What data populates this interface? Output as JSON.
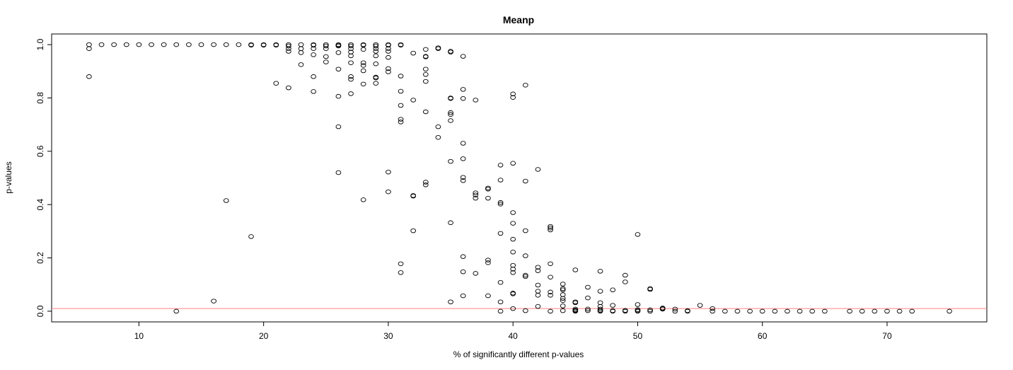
{
  "chart_data": {
    "type": "scatter",
    "title": "Meanp",
    "xlabel": "% of significantly different p-values",
    "ylabel": "p-values",
    "xlim": [
      3,
      78
    ],
    "ylim": [
      -0.04,
      1.04
    ],
    "x_ticks": [
      10,
      20,
      30,
      40,
      50,
      60,
      70
    ],
    "y_ticks": [
      0.0,
      0.2,
      0.4,
      0.6,
      0.8,
      1.0
    ],
    "x_tick_labels": [
      "10",
      "20",
      "30",
      "40",
      "50",
      "60",
      "70"
    ],
    "y_tick_labels": [
      "0.0",
      "0.2",
      "0.4",
      "0.6",
      "0.8",
      "1.0"
    ],
    "grid": false,
    "reference_line": {
      "y": 0.01,
      "color": "#ff8080"
    },
    "point_color": "#000000",
    "points": [
      [
        6,
        1.0
      ],
      [
        6,
        0.985
      ],
      [
        6,
        0.88
      ],
      [
        7,
        1.0
      ],
      [
        8,
        1.0
      ],
      [
        9,
        1.0
      ],
      [
        10,
        1.0
      ],
      [
        11,
        1.0
      ],
      [
        12,
        1.0
      ],
      [
        13,
        1.0
      ],
      [
        13,
        0.0
      ],
      [
        14,
        1.0
      ],
      [
        15,
        1.0
      ],
      [
        16,
        1.0
      ],
      [
        16,
        0.038
      ],
      [
        17,
        1.0
      ],
      [
        17,
        0.415
      ],
      [
        18,
        1.0
      ],
      [
        19,
        1.0
      ],
      [
        19,
        0.998
      ],
      [
        19,
        0.28
      ],
      [
        20,
        1.0
      ],
      [
        20,
        0.998
      ],
      [
        21,
        1.0
      ],
      [
        21,
        0.998
      ],
      [
        21,
        0.855
      ],
      [
        22,
        1.0
      ],
      [
        22,
        0.995
      ],
      [
        22,
        0.985
      ],
      [
        22,
        0.975
      ],
      [
        22,
        0.838
      ],
      [
        23,
        1.0
      ],
      [
        23,
        0.985
      ],
      [
        23,
        0.97
      ],
      [
        23,
        0.925
      ],
      [
        24,
        1.0
      ],
      [
        24,
        0.998
      ],
      [
        24,
        0.985
      ],
      [
        24,
        0.962
      ],
      [
        24,
        0.88
      ],
      [
        24,
        0.824
      ],
      [
        25,
        1.0
      ],
      [
        25,
        0.995
      ],
      [
        25,
        0.985
      ],
      [
        25,
        0.955
      ],
      [
        25,
        0.935
      ],
      [
        26,
        1.0
      ],
      [
        26,
        0.998
      ],
      [
        26,
        0.995
      ],
      [
        26,
        0.97
      ],
      [
        26,
        0.908
      ],
      [
        26,
        0.806
      ],
      [
        26,
        0.692
      ],
      [
        26,
        0.52
      ],
      [
        27,
        1.0
      ],
      [
        27,
        0.995
      ],
      [
        27,
        0.985
      ],
      [
        27,
        0.972
      ],
      [
        27,
        0.958
      ],
      [
        27,
        0.932
      ],
      [
        27,
        0.88
      ],
      [
        27,
        0.87
      ],
      [
        27,
        0.816
      ],
      [
        28,
        1.0
      ],
      [
        28,
        0.998
      ],
      [
        28,
        0.982
      ],
      [
        28,
        0.932
      ],
      [
        28,
        0.922
      ],
      [
        28,
        0.902
      ],
      [
        28,
        0.852
      ],
      [
        28,
        0.418
      ],
      [
        29,
        1.0
      ],
      [
        29,
        0.995
      ],
      [
        29,
        0.985
      ],
      [
        29,
        0.975
      ],
      [
        29,
        0.958
      ],
      [
        29,
        0.928
      ],
      [
        29,
        0.878
      ],
      [
        29,
        0.875
      ],
      [
        29,
        0.855
      ],
      [
        30,
        1.0
      ],
      [
        30,
        0.998
      ],
      [
        30,
        0.985
      ],
      [
        30,
        0.975
      ],
      [
        30,
        0.952
      ],
      [
        30,
        0.91
      ],
      [
        30,
        0.898
      ],
      [
        30,
        0.522
      ],
      [
        30,
        0.448
      ],
      [
        31,
        1.0
      ],
      [
        31,
        0.998
      ],
      [
        31,
        0.882
      ],
      [
        31,
        0.825
      ],
      [
        31,
        0.772
      ],
      [
        31,
        0.72
      ],
      [
        31,
        0.71
      ],
      [
        31,
        0.178
      ],
      [
        31,
        0.145
      ],
      [
        32,
        0.968
      ],
      [
        32,
        0.792
      ],
      [
        32,
        0.434
      ],
      [
        32,
        0.432
      ],
      [
        32,
        0.302
      ],
      [
        33,
        0.982
      ],
      [
        33,
        0.956
      ],
      [
        33,
        0.954
      ],
      [
        33,
        0.908
      ],
      [
        33,
        0.888
      ],
      [
        33,
        0.862
      ],
      [
        33,
        0.748
      ],
      [
        33,
        0.484
      ],
      [
        33,
        0.474
      ],
      [
        34,
        0.988
      ],
      [
        34,
        0.985
      ],
      [
        34,
        0.692
      ],
      [
        34,
        0.652
      ],
      [
        35,
        0.975
      ],
      [
        35,
        0.972
      ],
      [
        35,
        0.8
      ],
      [
        35,
        0.798
      ],
      [
        35,
        0.745
      ],
      [
        35,
        0.738
      ],
      [
        35,
        0.715
      ],
      [
        35,
        0.562
      ],
      [
        35,
        0.332
      ],
      [
        35,
        0.035
      ],
      [
        36,
        0.956
      ],
      [
        36,
        0.832
      ],
      [
        36,
        0.798
      ],
      [
        36,
        0.63
      ],
      [
        36,
        0.572
      ],
      [
        36,
        0.502
      ],
      [
        36,
        0.49
      ],
      [
        36,
        0.205
      ],
      [
        36,
        0.148
      ],
      [
        36,
        0.058
      ],
      [
        37,
        0.792
      ],
      [
        37,
        0.444
      ],
      [
        37,
        0.436
      ],
      [
        37,
        0.424
      ],
      [
        37,
        0.142
      ],
      [
        38,
        0.462
      ],
      [
        38,
        0.458
      ],
      [
        38,
        0.424
      ],
      [
        38,
        0.192
      ],
      [
        38,
        0.182
      ],
      [
        38,
        0.058
      ],
      [
        39,
        0.548
      ],
      [
        39,
        0.492
      ],
      [
        39,
        0.408
      ],
      [
        39,
        0.402
      ],
      [
        39,
        0.292
      ],
      [
        39,
        0.108
      ],
      [
        39,
        0.035
      ],
      [
        39,
        0.0
      ],
      [
        40,
        0.815
      ],
      [
        40,
        0.802
      ],
      [
        40,
        0.555
      ],
      [
        40,
        0.37
      ],
      [
        40,
        0.33
      ],
      [
        40,
        0.27
      ],
      [
        40,
        0.222
      ],
      [
        40,
        0.172
      ],
      [
        40,
        0.158
      ],
      [
        40,
        0.145
      ],
      [
        40,
        0.068
      ],
      [
        40,
        0.065
      ],
      [
        40,
        0.01
      ],
      [
        41,
        0.848
      ],
      [
        41,
        0.488
      ],
      [
        41,
        0.302
      ],
      [
        41,
        0.208
      ],
      [
        41,
        0.135
      ],
      [
        41,
        0.13
      ],
      [
        41,
        0.002
      ],
      [
        42,
        0.532
      ],
      [
        42,
        0.165
      ],
      [
        42,
        0.152
      ],
      [
        42,
        0.098
      ],
      [
        42,
        0.075
      ],
      [
        42,
        0.06
      ],
      [
        42,
        0.018
      ],
      [
        43,
        0.318
      ],
      [
        43,
        0.312
      ],
      [
        43,
        0.305
      ],
      [
        43,
        0.178
      ],
      [
        43,
        0.128
      ],
      [
        43,
        0.072
      ],
      [
        43,
        0.06
      ],
      [
        43,
        0.0
      ],
      [
        44,
        0.102
      ],
      [
        44,
        0.085
      ],
      [
        44,
        0.08
      ],
      [
        44,
        0.062
      ],
      [
        44,
        0.048
      ],
      [
        44,
        0.04
      ],
      [
        44,
        0.02
      ],
      [
        44,
        0.002
      ],
      [
        45,
        0.155
      ],
      [
        45,
        0.035
      ],
      [
        45,
        0.032
      ],
      [
        45,
        0.008
      ],
      [
        45,
        0.004
      ],
      [
        45,
        0.002
      ],
      [
        45,
        0.0
      ],
      [
        46,
        0.09
      ],
      [
        46,
        0.05
      ],
      [
        46,
        0.008
      ],
      [
        46,
        0.002
      ],
      [
        47,
        0.15
      ],
      [
        47,
        0.075
      ],
      [
        47,
        0.032
      ],
      [
        47,
        0.018
      ],
      [
        47,
        0.008
      ],
      [
        47,
        0.003
      ],
      [
        47,
        0.0
      ],
      [
        48,
        0.08
      ],
      [
        48,
        0.022
      ],
      [
        48,
        0.002
      ],
      [
        48,
        0.0
      ],
      [
        49,
        0.135
      ],
      [
        49,
        0.11
      ],
      [
        49,
        0.003
      ],
      [
        49,
        0.0
      ],
      [
        50,
        0.288
      ],
      [
        50,
        0.025
      ],
      [
        50,
        0.006
      ],
      [
        50,
        0.002
      ],
      [
        50,
        0.0
      ],
      [
        51,
        0.085
      ],
      [
        51,
        0.082
      ],
      [
        51,
        0.005
      ],
      [
        51,
        0.0
      ],
      [
        52,
        0.012
      ],
      [
        52,
        0.01
      ],
      [
        52,
        0.008
      ],
      [
        53,
        0.008
      ],
      [
        53,
        0.0
      ],
      [
        54,
        0.002
      ],
      [
        54,
        0.0
      ],
      [
        55,
        0.022
      ],
      [
        56,
        0.01
      ],
      [
        56,
        0.0
      ],
      [
        57,
        0.0
      ],
      [
        58,
        0.0
      ],
      [
        59,
        0.0
      ],
      [
        60,
        0.0
      ],
      [
        61,
        0.0
      ],
      [
        62,
        0.0
      ],
      [
        63,
        0.0
      ],
      [
        64,
        0.0
      ],
      [
        65,
        0.0
      ],
      [
        67,
        0.0
      ],
      [
        68,
        0.0
      ],
      [
        69,
        0.0
      ],
      [
        70,
        0.0
      ],
      [
        71,
        0.0
      ],
      [
        72,
        0.0
      ],
      [
        75,
        0.0
      ]
    ]
  }
}
